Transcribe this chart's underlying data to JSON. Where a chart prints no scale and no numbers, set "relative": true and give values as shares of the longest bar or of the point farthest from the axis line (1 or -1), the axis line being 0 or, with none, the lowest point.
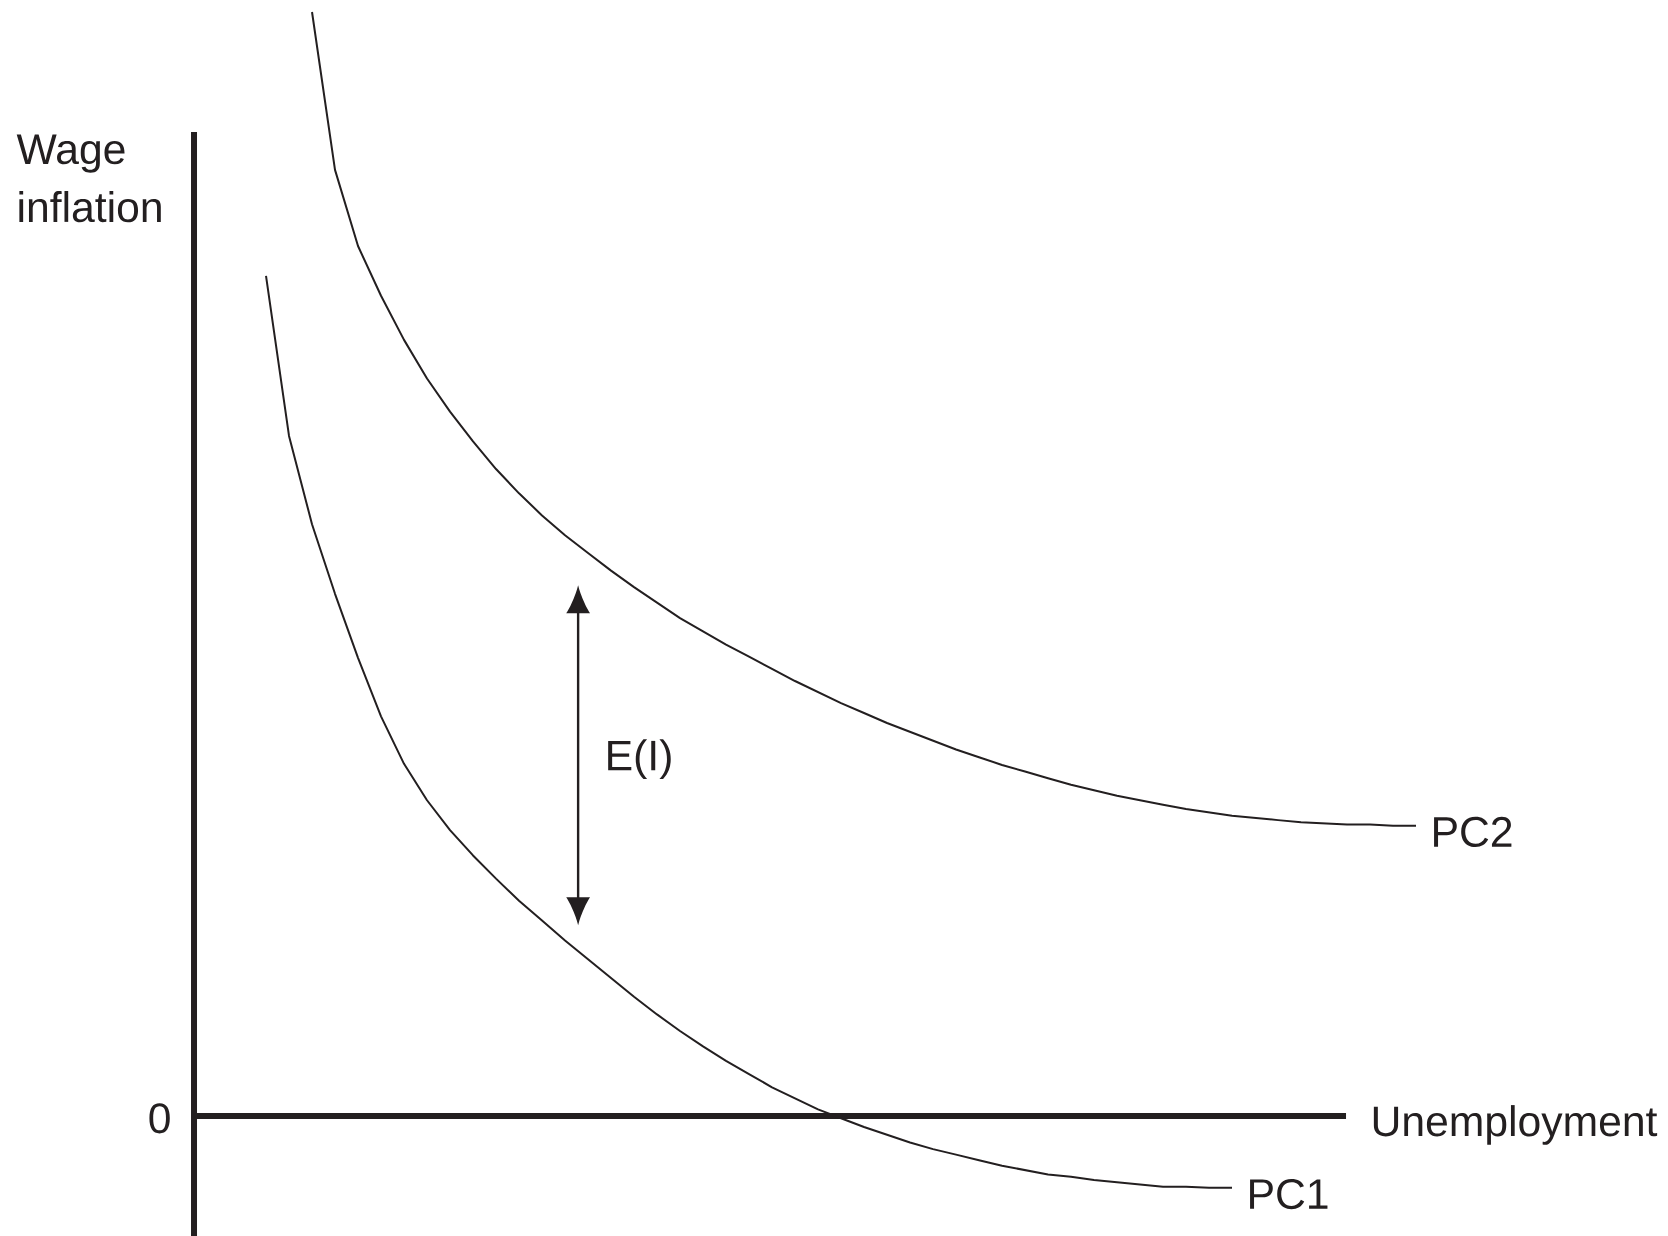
{
  "chart_data": {
    "type": "line",
    "relative": true,
    "xlabel": "Unemployment",
    "ylabel": "Wage inflation",
    "marker": "none",
    "categories": [
      null,
      null,
      null,
      null,
      null,
      null,
      null,
      null,
      null,
      null,
      null,
      null,
      null,
      null,
      null,
      null,
      null,
      null,
      null,
      null,
      null,
      null,
      null,
      null,
      null,
      null,
      null,
      null,
      null,
      null,
      null,
      null,
      null,
      null,
      null,
      null,
      null,
      null,
      null,
      null,
      null,
      null,
      null,
      null,
      null,
      null,
      null,
      null,
      null,
      null,
      null
    ],
    "series": [
      {
        "name": "PC1",
        "color": "#231f20",
        "values": [
          0.761,
          0.616,
          0.536,
          0.473,
          0.415,
          0.362,
          0.319,
          0.286,
          0.259,
          0.236,
          0.215,
          0.195,
          0.177,
          0.159,
          0.142,
          0.125,
          0.108,
          0.092,
          0.077,
          0.063,
          0.05,
          0.038,
          0.026,
          0.016,
          0.006,
          -0.002,
          -0.01,
          -0.017,
          -0.024,
          -0.03,
          -0.035,
          -0.04,
          -0.045,
          -0.049,
          -0.053,
          -0.055,
          -0.058,
          -0.06,
          -0.062,
          -0.064,
          -0.064,
          -0.065,
          -0.065,
          null,
          null,
          null,
          null,
          null,
          null,
          null,
          null
        ]
      },
      {
        "name": "PC2",
        "color": "#231f20",
        "values": [
          null,
          null,
          1.0,
          0.857,
          0.788,
          0.743,
          0.703,
          0.668,
          0.638,
          0.611,
          0.586,
          0.564,
          0.544,
          0.526,
          0.51,
          0.494,
          0.479,
          0.465,
          0.451,
          0.439,
          0.427,
          0.416,
          0.405,
          0.394,
          0.384,
          0.374,
          0.365,
          0.356,
          0.348,
          0.34,
          0.332,
          0.325,
          0.318,
          0.312,
          0.306,
          0.3,
          0.295,
          0.29,
          0.286,
          0.282,
          0.278,
          0.275,
          0.272,
          0.27,
          0.268,
          0.266,
          0.265,
          0.264,
          0.264,
          0.263,
          0.263
        ]
      }
    ],
    "annotations": [
      "0",
      "E(I)"
    ]
  }
}
